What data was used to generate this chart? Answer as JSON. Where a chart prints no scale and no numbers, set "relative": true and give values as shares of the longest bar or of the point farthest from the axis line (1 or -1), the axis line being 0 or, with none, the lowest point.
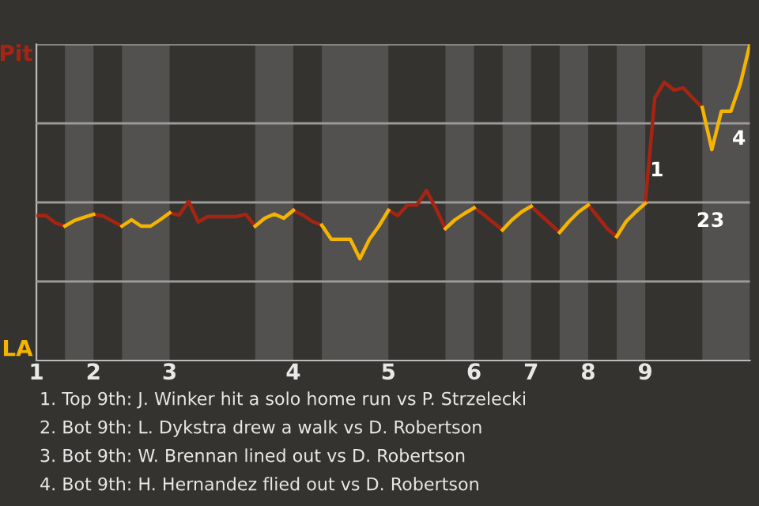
{
  "chart_data": {
    "type": "line",
    "relative": true,
    "categories": [
      "1",
      null,
      null,
      null,
      null,
      null,
      "2",
      null,
      null,
      null,
      null,
      null,
      null,
      null,
      "3",
      null,
      null,
      null,
      null,
      null,
      null,
      null,
      null,
      null,
      null,
      null,
      null,
      "4",
      null,
      null,
      null,
      null,
      null,
      null,
      null,
      null,
      null,
      "5",
      null,
      null,
      null,
      null,
      null,
      null,
      null,
      null,
      "6",
      null,
      null,
      null,
      null,
      null,
      "7",
      null,
      null,
      null,
      null,
      null,
      "8",
      null,
      null,
      null,
      null,
      null,
      "9",
      null,
      null,
      null,
      null,
      null,
      null,
      null,
      null,
      null,
      null,
      null
    ],
    "series": [
      {
        "name": "Pit",
        "color": "#a82412",
        "values": [
          0.458,
          0.458,
          0.435,
          0.425,
          null,
          null,
          0.462,
          0.457,
          0.441,
          0.425,
          null,
          null,
          null,
          null,
          0.467,
          0.46,
          0.503,
          0.438,
          0.455,
          0.455,
          0.455,
          0.455,
          0.462,
          0.425,
          null,
          null,
          null,
          0.475,
          0.46,
          0.44,
          0.428,
          null,
          null,
          null,
          null,
          null,
          null,
          0.475,
          0.458,
          0.492,
          0.492,
          0.538,
          0.48,
          0.417,
          null,
          null,
          0.483,
          0.462,
          0.437,
          0.413,
          null,
          null,
          0.488,
          0.46,
          0.433,
          0.405,
          null,
          null,
          0.492,
          0.455,
          0.417,
          0.392,
          null,
          null,
          0.497,
          0.83,
          0.88,
          0.855,
          0.862,
          0.83,
          0.8,
          null,
          null,
          null,
          null,
          null
        ]
      },
      {
        "name": "LA",
        "color": "#f5b400",
        "values": [
          null,
          null,
          null,
          0.425,
          0.443,
          0.453,
          0.462,
          null,
          null,
          0.425,
          0.445,
          0.425,
          0.425,
          0.445,
          0.467,
          null,
          null,
          null,
          null,
          null,
          null,
          null,
          null,
          0.425,
          0.45,
          0.463,
          0.45,
          0.475,
          null,
          null,
          0.428,
          0.383,
          0.383,
          0.383,
          0.322,
          0.383,
          0.425,
          0.475,
          null,
          null,
          null,
          null,
          null,
          0.417,
          0.445,
          0.465,
          0.483,
          null,
          null,
          0.413,
          0.445,
          0.47,
          0.488,
          null,
          null,
          0.405,
          0.44,
          0.47,
          0.492,
          null,
          null,
          0.392,
          0.44,
          0.47,
          0.497,
          null,
          null,
          null,
          null,
          null,
          0.8,
          0.667,
          0.788,
          0.788,
          0.875,
          1.0
        ]
      }
    ],
    "legend": "left",
    "grid": "y",
    "line_style": "solid",
    "marker": "none",
    "annotations": [
      "1",
      "2",
      "3",
      "4",
      "1. Top 9th: J. Winker hit a solo home run vs P. Strzelecki",
      "2. Bot 9th: L. Dykstra drew a walk vs D. Robertson",
      "3. Bot 9th: W. Brennan lined out vs D. Robertson",
      "4. Bot 9th: H. Hernandez flied out vs D. Robertson"
    ]
  }
}
